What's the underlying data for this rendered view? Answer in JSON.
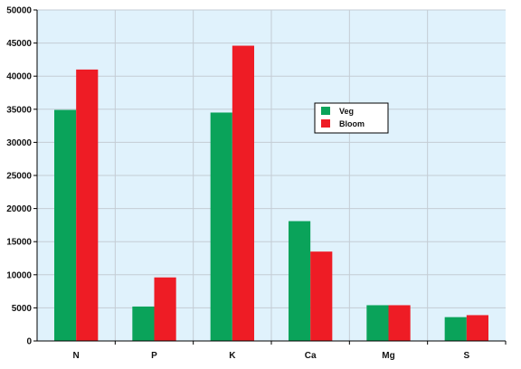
{
  "chart_data": {
    "type": "bar",
    "title": "",
    "xlabel": "",
    "ylabel": "",
    "categories": [
      "N",
      "P",
      "K",
      "Ca",
      "Mg",
      "S"
    ],
    "series": [
      {
        "name": "Veg",
        "color": "#0aa35a",
        "values": [
          34900,
          5200,
          34500,
          18100,
          5400,
          3600
        ]
      },
      {
        "name": "Bloom",
        "color": "#ee1c25",
        "values": [
          41000,
          9600,
          44600,
          13500,
          5400,
          3900
        ]
      }
    ],
    "ylim": [
      0,
      50000
    ],
    "yticks": [
      "0",
      "5000",
      "10000",
      "15000",
      "20000",
      "25000",
      "30000",
      "35000",
      "40000",
      "45000",
      "50000"
    ],
    "grid": true,
    "plot_background": "#e0f2fc",
    "legend_position": "inside-right"
  }
}
